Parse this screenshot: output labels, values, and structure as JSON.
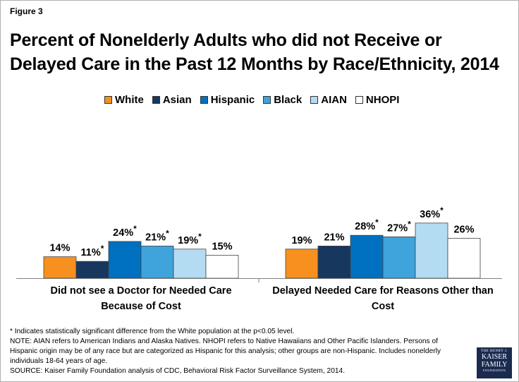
{
  "figure_label": "Figure 3",
  "title": "Percent of Nonelderly Adults who did not Receive or Delayed Care in the Past 12 Months by Race/Ethnicity, 2014",
  "colors": {
    "White": "#f7901e",
    "Asian": "#17375e",
    "Hispanic": "#0070c0",
    "Black": "#3fa3dc",
    "AIAN": "#b3dcf3",
    "NHOPI": "#ffffff"
  },
  "chart_data": {
    "type": "bar",
    "title": "Percent of Nonelderly Adults who did not Receive or Delayed Care in the Past 12 Months by Race/Ethnicity, 2014",
    "categories": [
      "Did not see a Doctor for Needed Care Because of Cost",
      "Delayed Needed Care for Reasons Other than Cost"
    ],
    "category_lines": [
      [
        "Did not see a Doctor for Needed Care",
        "Because of Cost"
      ],
      [
        "Delayed Needed Care for Reasons Other than",
        "Cost"
      ]
    ],
    "series": [
      {
        "name": "White",
        "values": [
          14,
          19
        ],
        "labels": [
          "14%",
          "19%"
        ],
        "significant": [
          false,
          false
        ]
      },
      {
        "name": "Asian",
        "values": [
          11,
          21
        ],
        "labels": [
          "11%",
          "21%"
        ],
        "significant": [
          true,
          false
        ]
      },
      {
        "name": "Hispanic",
        "values": [
          24,
          28
        ],
        "labels": [
          "24%",
          "28%"
        ],
        "significant": [
          true,
          true
        ]
      },
      {
        "name": "Black",
        "values": [
          21,
          27
        ],
        "labels": [
          "21%",
          "27%"
        ],
        "significant": [
          true,
          true
        ]
      },
      {
        "name": "AIAN",
        "values": [
          19,
          36
        ],
        "labels": [
          "19%",
          "36%"
        ],
        "significant": [
          true,
          true
        ]
      },
      {
        "name": "NHOPI",
        "values": [
          15,
          26
        ],
        "labels": [
          "15%",
          "26%"
        ],
        "significant": [
          false,
          false
        ]
      }
    ],
    "ylim": [
      0,
      100
    ],
    "grid": false,
    "legend_position": "top",
    "xlabel": "",
    "ylabel": ""
  },
  "notes": [
    "* Indicates statistically significant difference from the White population at the p<0.05 level.",
    "NOTE: AIAN refers to American Indians and Alaska Natives. NHOPI refers to Native Hawaiians and Other Pacific Islanders. Persons of Hispanic origin may be of any race but are categorized as Hispanic for this analysis; other groups are non-Hispanic. Includes nonelderly individuals 18-64 years of age.",
    "SOURCE: Kaiser Family Foundation analysis of CDC, Behavioral Risk Factor Surveillance System, 2014."
  ],
  "logo": {
    "line1": "THE HENRY J.",
    "line2": "KAISER",
    "line3": "FAMILY",
    "line4": "FOUNDATION"
  }
}
